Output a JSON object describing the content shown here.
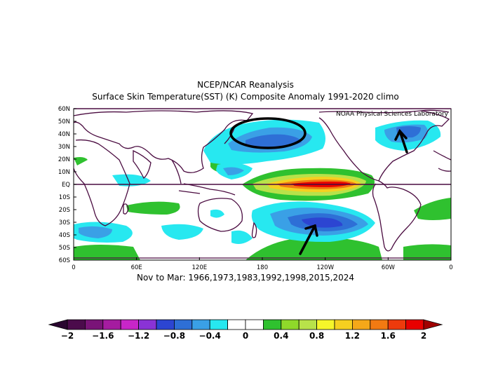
{
  "title_line1": "NCEP/NCAR Reanalysis",
  "title_line2": "Surface Skin Temperature(SST) (K) Composite Anomaly 1991-2020 climo",
  "credit": "NOAA Physical Sciences Laboratory",
  "subtitle": "Nov to Mar: 1966,1973,1983,1992,1998,2015,2024",
  "lat_labels": [
    "60N",
    "50N",
    "40N",
    "30N",
    "20N",
    "10N",
    "EQ",
    "10S",
    "20S",
    "30S",
    "40S",
    "50S",
    "60S"
  ],
  "lon_labels": [
    "0",
    "60E",
    "120E",
    "180",
    "120W",
    "60W",
    "0"
  ],
  "colorbar": {
    "labels": [
      "-2",
      "-1.6",
      "-1.2",
      "-0.8",
      "-0.4",
      "0",
      "0.4",
      "0.8",
      "1.2",
      "1.6",
      "2"
    ],
    "colors": [
      "#4b0b4b",
      "#7a1478",
      "#a51ca0",
      "#c826c8",
      "#8a33d6",
      "#2c45d2",
      "#2e6fd6",
      "#3aa0e6",
      "#27e8f0",
      "#ffffff",
      "#ffffff",
      "#2fc12f",
      "#8fd92a",
      "#b8e24a",
      "#f5f52a",
      "#f5d020",
      "#f5a819",
      "#f27a12",
      "#ee3a0c",
      "#e80000"
    ]
  },
  "colors": {
    "frame": "#4a0b40",
    "coast": "#4a0b40",
    "warm_core": "#e80000",
    "cool_core": "#2c45d2"
  }
}
